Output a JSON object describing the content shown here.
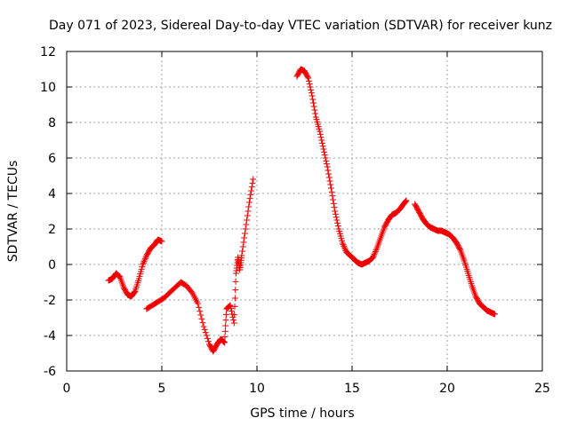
{
  "chart_data": {
    "type": "scatter",
    "title": "Day 071 of 2023, Sidereal Day-to-day VTEC variation (SDTVAR) for receiver kunz",
    "xlabel": "GPS time / hours",
    "ylabel": "SDTVAR / TECUs",
    "xlim": [
      0,
      25
    ],
    "ylim": [
      -6,
      12
    ],
    "xticks": [
      "0",
      "5",
      "10",
      "15",
      "20",
      "25"
    ],
    "yticks": [
      "-6",
      "-4",
      "-2",
      "0",
      "2",
      "4",
      "6",
      "8",
      "10",
      "12"
    ],
    "grid": true,
    "marker": "plus",
    "color": "#ee0000",
    "series": [
      {
        "name": "segment-1",
        "x": [
          2.2,
          2.4,
          2.6,
          2.8,
          3.0,
          3.2,
          3.4,
          3.6,
          3.8,
          4.0,
          4.2,
          4.4,
          4.6,
          4.8,
          5.0
        ],
        "y": [
          -0.9,
          -0.8,
          -0.5,
          -0.7,
          -1.3,
          -1.7,
          -1.8,
          -1.5,
          -0.8,
          0.0,
          0.5,
          0.9,
          1.1,
          1.4,
          1.3
        ]
      },
      {
        "name": "segment-2",
        "x": [
          4.2,
          4.5,
          4.8,
          5.1,
          5.4,
          5.7,
          6.0,
          6.3,
          6.6,
          6.9,
          7.2,
          7.5,
          7.7,
          7.9,
          8.1,
          8.3,
          8.4,
          8.6,
          8.8,
          8.9,
          9.0,
          9.1,
          9.2,
          9.4,
          9.6,
          9.8
        ],
        "y": [
          -2.5,
          -2.3,
          -2.1,
          -1.9,
          -1.6,
          -1.3,
          -1.0,
          -1.2,
          -1.6,
          -2.2,
          -3.5,
          -4.5,
          -4.9,
          -4.5,
          -4.2,
          -4.4,
          -2.5,
          -2.3,
          -3.3,
          -0.5,
          0.4,
          -0.3,
          0.5,
          2.0,
          3.5,
          4.8
        ]
      },
      {
        "name": "segment-3",
        "x": [
          12.1,
          12.3,
          12.5,
          12.7,
          12.9,
          13.1,
          13.3,
          13.5,
          13.7,
          13.9,
          14.1,
          14.3,
          14.5,
          14.7,
          14.9,
          15.1,
          15.3,
          15.5,
          15.7,
          15.9,
          16.1,
          16.3,
          16.5,
          16.7,
          16.9,
          17.1,
          17.3,
          17.5,
          17.7,
          17.85
        ],
        "y": [
          10.6,
          11.0,
          10.9,
          10.5,
          9.5,
          8.3,
          7.5,
          6.5,
          5.5,
          4.3,
          3.0,
          2.0,
          1.2,
          0.7,
          0.5,
          0.3,
          0.1,
          0.0,
          0.1,
          0.2,
          0.4,
          0.9,
          1.5,
          2.1,
          2.5,
          2.8,
          2.9,
          3.1,
          3.4,
          3.6
        ]
      },
      {
        "name": "segment-4",
        "x": [
          18.3,
          18.5,
          18.7,
          18.9,
          19.1,
          19.3,
          19.5,
          19.7,
          19.9,
          20.1,
          20.3,
          20.5,
          20.7,
          20.9,
          21.1,
          21.3,
          21.5,
          21.7,
          21.9,
          22.1,
          22.3,
          22.5
        ],
        "y": [
          3.4,
          3.0,
          2.6,
          2.3,
          2.1,
          2.0,
          1.9,
          1.9,
          1.8,
          1.7,
          1.5,
          1.2,
          0.8,
          0.2,
          -0.5,
          -1.2,
          -1.8,
          -2.2,
          -2.4,
          -2.6,
          -2.7,
          -2.8
        ]
      }
    ]
  }
}
